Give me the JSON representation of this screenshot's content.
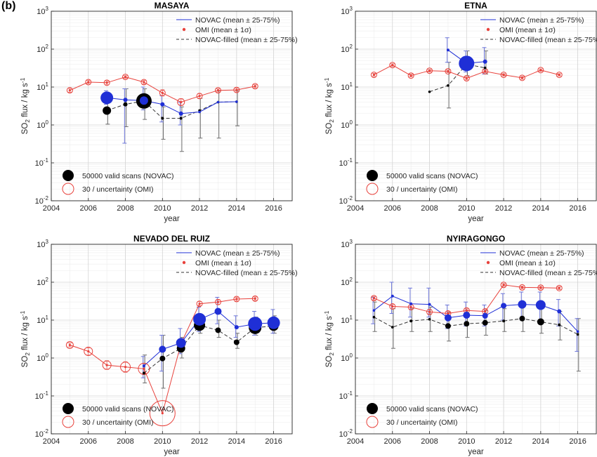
{
  "figure": {
    "panel_label": "(b)"
  },
  "legend_labels": {
    "novac": "NOVAC (mean ± 25-75%)",
    "omi": "OMI (mean ± 1σ)",
    "novac_filled": "NOVAC-filled (mean ± 25-75%)",
    "size_novac": "50000 valid scans (NOVAC)",
    "size_omi": "30 / uncertainty (OMI)"
  },
  "colors": {
    "novac": "#1f2fd6",
    "omi": "#e8423c",
    "filled": "#000000",
    "errbar": "#8a8a8a"
  },
  "chart_data": [
    {
      "type": "scatter",
      "title": "MASAYA",
      "xlabel": "year",
      "ylabel": "SO2 flux / kg s-1",
      "xlim": [
        2004,
        2017
      ],
      "ylim": [
        0.01,
        1000
      ],
      "yscale": "log",
      "xticks": [
        2004,
        2006,
        2008,
        2010,
        2012,
        2014,
        2016
      ],
      "yticks": [
        "10-2",
        "10-1",
        "100",
        "101",
        "102",
        "103"
      ],
      "grid": true,
      "show_filled_legend": true,
      "series": [
        {
          "name": "NOVAC (mean ± 25-75%)",
          "points": [
            {
              "x": 2007,
              "y": 5.2,
              "lo": 3.5,
              "hi": 8,
              "s": 9
            },
            {
              "x": 2008,
              "y": 4.6,
              "lo": 0.33,
              "hi": 9,
              "s": 3
            },
            {
              "x": 2009,
              "y": 4.4,
              "lo": 2.5,
              "hi": 10,
              "s": 6
            },
            {
              "x": 2010,
              "y": 3.5,
              "lo": 1.2,
              "hi": 6,
              "s": 3
            },
            {
              "x": 2011,
              "y": 2.0,
              "lo": 1.0,
              "hi": 4,
              "s": 3
            },
            {
              "x": 2012,
              "y": 2.2,
              "s": 0
            },
            {
              "x": 2013,
              "y": 4.0,
              "s": 0
            },
            {
              "x": 2014,
              "y": 4.1,
              "s": 0
            }
          ]
        },
        {
          "name": "OMI (mean ± 1σ)",
          "points": [
            {
              "x": 2005,
              "y": 8.2,
              "lo": 7.3,
              "hi": 9.2,
              "r": 4
            },
            {
              "x": 2006,
              "y": 13.5,
              "lo": 12.3,
              "hi": 15,
              "r": 4
            },
            {
              "x": 2007,
              "y": 13.0,
              "lo": 11.5,
              "hi": 14.5,
              "r": 4
            },
            {
              "x": 2008,
              "y": 18.5,
              "lo": 17,
              "hi": 20,
              "r": 4
            },
            {
              "x": 2009,
              "y": 13.5,
              "lo": 12,
              "hi": 15,
              "r": 4
            },
            {
              "x": 2010,
              "y": 7.0,
              "lo": 5.8,
              "hi": 8.5,
              "r": 4
            },
            {
              "x": 2011,
              "y": 4.0,
              "lo": 3.3,
              "hi": 4.9,
              "r": 5
            },
            {
              "x": 2012,
              "y": 5.8,
              "lo": 5,
              "hi": 6.7,
              "r": 4
            },
            {
              "x": 2013,
              "y": 8.2,
              "lo": 7.4,
              "hi": 9,
              "r": 4
            },
            {
              "x": 2014,
              "y": 8.4,
              "lo": 7.4,
              "hi": 9.4,
              "r": 4
            },
            {
              "x": 2015,
              "y": 10.5,
              "lo": 9.5,
              "hi": 11.5,
              "r": 4
            }
          ]
        },
        {
          "name": "NOVAC-filled (mean ± 25-75%)",
          "points": [
            {
              "x": 2007,
              "y": 2.4,
              "lo": 1.05,
              "hi": 4,
              "s": 6
            },
            {
              "x": 2008,
              "y": 3.5,
              "lo": 0.9,
              "hi": 9,
              "s": 3
            },
            {
              "x": 2009,
              "y": 4.3,
              "lo": 1.4,
              "hi": 9,
              "s": 11
            },
            {
              "x": 2010,
              "y": 1.5,
              "lo": 0.42,
              "hi": 3,
              "s": 2
            },
            {
              "x": 2011,
              "y": 1.5,
              "lo": 0.2,
              "hi": 3,
              "s": 2
            },
            {
              "x": 2012,
              "y": 2.4,
              "lo": 0.45,
              "hi": 5,
              "s": 0
            },
            {
              "x": 2013,
              "y": 4.0,
              "lo": 0.45,
              "hi": 8,
              "s": 0
            },
            {
              "x": 2014,
              "y": 4.1,
              "lo": 0.95,
              "hi": 8,
              "s": 0
            }
          ]
        }
      ]
    },
    {
      "type": "scatter",
      "title": "ETNA",
      "xlabel": "year",
      "ylabel": "SO2 flux / kg s-1",
      "xlim": [
        2004,
        2017
      ],
      "ylim": [
        0.01,
        1000
      ],
      "yscale": "log",
      "xticks": [
        2004,
        2006,
        2008,
        2010,
        2012,
        2014,
        2016
      ],
      "yticks": [
        "10-2",
        "10-1",
        "100",
        "101",
        "102",
        "103"
      ],
      "grid": true,
      "show_filled_legend": true,
      "series": [
        {
          "name": "NOVAC (mean ± 25-75%)",
          "points": [
            {
              "x": 2009,
              "y": 95,
              "lo": 45,
              "hi": 200,
              "s": 2
            },
            {
              "x": 2010,
              "y": 42,
              "lo": 25,
              "hi": 90,
              "s": 11
            },
            {
              "x": 2011,
              "y": 47,
              "lo": 22,
              "hi": 110,
              "s": 3
            }
          ]
        },
        {
          "name": "OMI (mean ± 1σ)",
          "points": [
            {
              "x": 2005,
              "y": 21,
              "lo": 19,
              "hi": 23,
              "r": 4
            },
            {
              "x": 2006,
              "y": 38,
              "lo": 35,
              "hi": 41,
              "r": 4
            },
            {
              "x": 2007,
              "y": 20,
              "lo": 18.5,
              "hi": 22,
              "r": 4
            },
            {
              "x": 2008,
              "y": 27,
              "lo": 25,
              "hi": 29,
              "r": 4
            },
            {
              "x": 2009,
              "y": 26,
              "lo": 24,
              "hi": 28,
              "r": 4
            },
            {
              "x": 2010,
              "y": 17,
              "lo": 15.5,
              "hi": 18.5,
              "r": 4
            },
            {
              "x": 2011,
              "y": 26,
              "lo": 24,
              "hi": 28,
              "r": 4
            },
            {
              "x": 2012,
              "y": 21,
              "lo": 19.5,
              "hi": 22.5,
              "r": 4
            },
            {
              "x": 2013,
              "y": 17.5,
              "lo": 16,
              "hi": 19,
              "r": 4
            },
            {
              "x": 2014,
              "y": 28,
              "lo": 26,
              "hi": 30,
              "r": 4
            },
            {
              "x": 2015,
              "y": 21,
              "lo": 19.5,
              "hi": 22.5,
              "r": 4
            }
          ]
        },
        {
          "name": "NOVAC-filled (mean ± 25-75%)",
          "points": [
            {
              "x": 2008,
              "y": 7.5,
              "s": 0
            },
            {
              "x": 2009,
              "y": 11,
              "lo": 2.8,
              "hi": 45,
              "s": 0
            },
            {
              "x": 2010,
              "y": 40,
              "lo": 20,
              "hi": 90,
              "s": 0
            },
            {
              "x": 2011,
              "y": 32,
              "lo": 22,
              "hi": 90,
              "s": 0
            }
          ]
        }
      ]
    },
    {
      "type": "scatter",
      "title": "NEVADO DEL RUIZ",
      "xlabel": "year",
      "ylabel": "SO2 flux / kg s-1",
      "xlim": [
        2004,
        2017
      ],
      "ylim": [
        0.01,
        1000
      ],
      "yscale": "log",
      "xticks": [
        2004,
        2006,
        2008,
        2010,
        2012,
        2014,
        2016
      ],
      "yticks": [
        "10-2",
        "10-1",
        "100",
        "101",
        "102",
        "103"
      ],
      "grid": true,
      "show_filled_legend": true,
      "series": [
        {
          "name": "NOVAC (mean ± 25-75%)",
          "points": [
            {
              "x": 2009,
              "y": 0.62,
              "lo": 0.3,
              "hi": 1.1,
              "s": 2
            },
            {
              "x": 2010,
              "y": 1.7,
              "lo": 0.45,
              "hi": 4,
              "s": 5
            },
            {
              "x": 2011,
              "y": 2.5,
              "lo": 1.3,
              "hi": 6,
              "s": 7
            },
            {
              "x": 2012,
              "y": 10.5,
              "lo": 5,
              "hi": 22,
              "s": 9
            },
            {
              "x": 2013,
              "y": 17,
              "lo": 8,
              "hi": 40,
              "s": 5
            },
            {
              "x": 2014,
              "y": 6.5,
              "lo": 3.5,
              "hi": 13,
              "s": 3
            },
            {
              "x": 2015,
              "y": 8.0,
              "lo": 4,
              "hi": 17,
              "s": 10
            },
            {
              "x": 2016,
              "y": 8.5,
              "lo": 4.5,
              "hi": 19,
              "s": 9
            }
          ]
        },
        {
          "name": "OMI (mean ± 1σ)",
          "points": [
            {
              "x": 2005,
              "y": 2.2,
              "lo": 1.95,
              "hi": 2.5,
              "r": 5
            },
            {
              "x": 2006,
              "y": 1.5,
              "lo": 1.2,
              "hi": 1.85,
              "r": 6
            },
            {
              "x": 2007,
              "y": 0.65,
              "lo": 0.5,
              "hi": 0.85,
              "r": 6
            },
            {
              "x": 2008,
              "y": 0.58,
              "lo": 0.42,
              "hi": 0.8,
              "r": 7
            },
            {
              "x": 2009,
              "y": 0.52,
              "lo": 0.37,
              "hi": 0.72,
              "r": 8
            },
            {
              "x": 2010,
              "y": 0.035,
              "r": 18
            },
            {
              "x": 2011,
              "y": 2.4,
              "lo": 1.8,
              "hi": 3.2,
              "r": 6
            },
            {
              "x": 2012,
              "y": 27,
              "lo": 24,
              "hi": 31,
              "r": 4
            },
            {
              "x": 2013,
              "y": 30,
              "lo": 26,
              "hi": 34,
              "r": 4
            },
            {
              "x": 2014,
              "y": 36,
              "lo": 32,
              "hi": 40,
              "r": 4
            },
            {
              "x": 2015,
              "y": 37,
              "lo": 33,
              "hi": 41,
              "r": 4
            }
          ]
        },
        {
          "name": "NOVAC-filled (mean ± 25-75%)",
          "points": [
            {
              "x": 2009,
              "y": 0.4,
              "lo": 0.22,
              "hi": 1.2,
              "s": 2
            },
            {
              "x": 2010,
              "y": 0.97,
              "lo": 0.16,
              "hi": 4,
              "s": 4
            },
            {
              "x": 2011,
              "y": 1.8,
              "lo": 1.0,
              "hi": 3.5,
              "s": 6
            },
            {
              "x": 2012,
              "y": 7.3,
              "lo": 4.5,
              "hi": 12,
              "s": 8
            },
            {
              "x": 2013,
              "y": 5.4,
              "lo": 3.5,
              "hi": 10,
              "s": 4
            },
            {
              "x": 2014,
              "y": 2.6,
              "lo": 1.8,
              "hi": 4.5,
              "s": 4
            },
            {
              "x": 2015,
              "y": 6.3,
              "lo": 4,
              "hi": 12,
              "s": 9
            },
            {
              "x": 2016,
              "y": 7.0,
              "lo": 4.5,
              "hi": 13,
              "s": 7
            }
          ]
        }
      ]
    },
    {
      "type": "scatter",
      "title": "NYIRAGONGO",
      "xlabel": "year",
      "ylabel": "SO2 flux / kg s-1",
      "xlim": [
        2004,
        2017
      ],
      "ylim": [
        0.01,
        1000
      ],
      "yscale": "log",
      "xticks": [
        2004,
        2006,
        2008,
        2010,
        2012,
        2014,
        2016
      ],
      "yticks": [
        "10-2",
        "10-1",
        "100",
        "101",
        "102",
        "103"
      ],
      "grid": true,
      "show_filled_legend": true,
      "series": [
        {
          "name": "NOVAC (mean ± 25-75%)",
          "points": [
            {
              "x": 2005,
              "y": 18,
              "lo": 8,
              "hi": 40,
              "s": 0
            },
            {
              "x": 2006,
              "y": 43,
              "lo": 15,
              "hi": 100,
              "s": 2
            },
            {
              "x": 2007,
              "y": 27,
              "lo": 12,
              "hi": 70,
              "s": 2
            },
            {
              "x": 2008,
              "y": 26,
              "lo": 12,
              "hi": 70,
              "s": 2
            },
            {
              "x": 2009,
              "y": 11.5,
              "lo": 6,
              "hi": 25,
              "s": 5
            },
            {
              "x": 2010,
              "y": 13.5,
              "lo": 7,
              "hi": 30,
              "s": 5
            },
            {
              "x": 2011,
              "y": 13,
              "lo": 7,
              "hi": 25,
              "s": 4
            },
            {
              "x": 2012,
              "y": 24,
              "lo": 10,
              "hi": 50,
              "s": 4
            },
            {
              "x": 2013,
              "y": 26,
              "lo": 11,
              "hi": 55,
              "s": 6
            },
            {
              "x": 2014,
              "y": 25,
              "lo": 10,
              "hi": 55,
              "s": 7
            },
            {
              "x": 2015,
              "y": 17,
              "lo": 7,
              "hi": 35,
              "s": 3
            },
            {
              "x": 2016,
              "y": 5,
              "lo": 1.5,
              "hi": 11,
              "s": 0
            }
          ]
        },
        {
          "name": "OMI (mean ± 1σ)",
          "points": [
            {
              "x": 2005,
              "y": 38,
              "lo": 34,
              "hi": 42,
              "r": 4
            },
            {
              "x": 2006,
              "y": 23,
              "lo": 20,
              "hi": 26,
              "r": 4
            },
            {
              "x": 2007,
              "y": 22,
              "lo": 19,
              "hi": 25,
              "r": 4
            },
            {
              "x": 2008,
              "y": 16.5,
              "lo": 14,
              "hi": 19,
              "r": 4
            },
            {
              "x": 2009,
              "y": 15,
              "lo": 13,
              "hi": 17,
              "r": 4
            },
            {
              "x": 2010,
              "y": 18,
              "lo": 16,
              "hi": 20,
              "r": 4
            },
            {
              "x": 2011,
              "y": 17,
              "lo": 15,
              "hi": 19,
              "r": 4
            },
            {
              "x": 2012,
              "y": 85,
              "lo": 78,
              "hi": 92,
              "r": 4
            },
            {
              "x": 2013,
              "y": 73,
              "lo": 67,
              "hi": 79,
              "r": 4
            },
            {
              "x": 2014,
              "y": 72,
              "lo": 66,
              "hi": 78,
              "r": 4
            },
            {
              "x": 2015,
              "y": 70,
              "lo": 64,
              "hi": 76,
              "r": 4
            }
          ]
        },
        {
          "name": "NOVAC-filled (mean ± 25-75%)",
          "points": [
            {
              "x": 2005,
              "y": 12,
              "lo": 5,
              "hi": 30,
              "s": 0
            },
            {
              "x": 2006,
              "y": 6.5,
              "lo": 1.8,
              "hi": 20,
              "s": 0
            },
            {
              "x": 2007,
              "y": 9.5,
              "lo": 5,
              "hi": 20,
              "s": 2
            },
            {
              "x": 2008,
              "y": 10.5,
              "lo": 5,
              "hi": 22,
              "s": 0
            },
            {
              "x": 2009,
              "y": 7.0,
              "lo": 2.8,
              "hi": 16,
              "s": 4
            },
            {
              "x": 2010,
              "y": 8.0,
              "lo": 3.5,
              "hi": 18,
              "s": 4
            },
            {
              "x": 2011,
              "y": 8.5,
              "lo": 4,
              "hi": 18,
              "s": 4
            },
            {
              "x": 2012,
              "y": 9.5,
              "lo": 5,
              "hi": 20,
              "s": 2
            },
            {
              "x": 2013,
              "y": 11,
              "lo": 5,
              "hi": 25,
              "s": 4
            },
            {
              "x": 2014,
              "y": 9.0,
              "lo": 4.5,
              "hi": 20,
              "s": 5
            },
            {
              "x": 2015,
              "y": 7.5,
              "lo": 3,
              "hi": 17,
              "s": 2
            },
            {
              "x": 2016,
              "y": 4.2,
              "lo": 0.45,
              "hi": 11,
              "s": 0
            }
          ]
        }
      ]
    }
  ]
}
